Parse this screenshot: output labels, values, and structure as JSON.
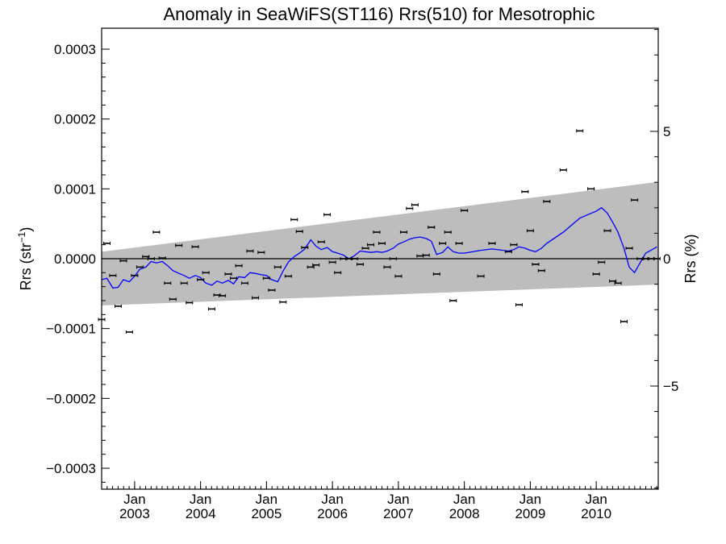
{
  "chart_data": {
    "type": "scatter",
    "title": "Anomaly in SeaWiFS(ST116) Rrs(510) for Mesotrophic",
    "ylabel_left": "Rrs (str",
    "ylabel_left_sup": "−1",
    "ylabel_left_close": ")",
    "ylabel_right": "Rrs (%)",
    "xlim": [
      2002.5,
      2010.94
    ],
    "ylim": [
      -0.00033,
      0.00033
    ],
    "right_ylim": [
      -9.05,
      9.05
    ],
    "grid": false,
    "y_ticks": [
      {
        "value": 0.0003,
        "label": "0.0003"
      },
      {
        "value": 0.0002,
        "label": "0.0002"
      },
      {
        "value": 0.0001,
        "label": "0.0001"
      },
      {
        "value": 0.0,
        "label": "0.0000"
      },
      {
        "value": -0.0001,
        "label": "−0.0001"
      },
      {
        "value": -0.0002,
        "label": "−0.0002"
      },
      {
        "value": -0.0003,
        "label": "−0.0003"
      }
    ],
    "right_ticks": [
      {
        "value": 5,
        "label": "5"
      },
      {
        "value": 0,
        "label": "0"
      },
      {
        "value": -5,
        "label": "−5"
      }
    ],
    "x_ticks": [
      {
        "value": 2003.0,
        "month": "Jan",
        "year": "2003"
      },
      {
        "value": 2004.0,
        "month": "Jan",
        "year": "2004"
      },
      {
        "value": 2005.0,
        "month": "Jan",
        "year": "2005"
      },
      {
        "value": 2006.0,
        "month": "Jan",
        "year": "2006"
      },
      {
        "value": 2007.0,
        "month": "Jan",
        "year": "2007"
      },
      {
        "value": 2008.0,
        "month": "Jan",
        "year": "2008"
      },
      {
        "value": 2009.0,
        "month": "Jan",
        "year": "2009"
      },
      {
        "value": 2010.0,
        "month": "Jan",
        "year": "2010"
      }
    ],
    "band": {
      "color": "#bdbdbd",
      "upper": [
        [
          2002.5,
          1e-05
        ],
        [
          2010.94,
          0.00011
        ]
      ],
      "lower": [
        [
          2002.5,
          -6.7e-05
        ],
        [
          2010.94,
          -3.7e-05
        ]
      ]
    },
    "zero_line": 0.0,
    "series": [
      {
        "kind": "points_with_errorbars",
        "color": "#000000",
        "x": [
          2002.5,
          2002.58,
          2002.67,
          2002.75,
          2002.83,
          2002.92,
          2003.0,
          2003.08,
          2003.17,
          2003.25,
          2003.33,
          2003.42,
          2003.5,
          2003.58,
          2003.67,
          2003.75,
          2003.83,
          2003.92,
          2004.0,
          2004.08,
          2004.17,
          2004.25,
          2004.33,
          2004.42,
          2004.5,
          2004.58,
          2004.67,
          2004.75,
          2004.83,
          2004.92,
          2005.0,
          2005.08,
          2005.17,
          2005.25,
          2005.33,
          2005.42,
          2005.5,
          2005.58,
          2005.67,
          2005.75,
          2005.83,
          2005.92,
          2006.0,
          2006.08,
          2006.17,
          2006.25,
          2006.33,
          2006.42,
          2006.5,
          2006.58,
          2006.67,
          2006.75,
          2006.83,
          2006.92,
          2007.0,
          2007.08,
          2007.17,
          2007.25,
          2007.33,
          2007.42,
          2007.5,
          2007.58,
          2007.67,
          2007.75,
          2007.83,
          2007.92,
          2008.0,
          2008.25,
          2008.42,
          2008.67,
          2008.75,
          2008.83,
          2008.92,
          2009.0,
          2009.08,
          2009.17,
          2009.25,
          2009.5,
          2009.75,
          2009.92,
          2010.0,
          2010.08,
          2010.17,
          2010.25,
          2010.33,
          2010.42,
          2010.5,
          2010.58,
          2010.67,
          2010.75,
          2010.83,
          2010.92
        ],
        "y": [
          -8.7e-05,
          2.2e-05,
          -2.4e-05,
          -6.8e-05,
          -3e-06,
          -0.000105,
          -2.4e-05,
          -1.2e-05,
          3e-06,
          0.0,
          3.8e-05,
          1e-06,
          -3.5e-05,
          -5.8e-05,
          1.9e-05,
          -3.5e-05,
          -6.3e-05,
          1.7e-05,
          -3e-05,
          -2e-05,
          -7.2e-05,
          -5.2e-05,
          -5.3e-05,
          -2.2e-05,
          -2.8e-05,
          -1e-05,
          -3.5e-05,
          1.1e-05,
          -5.6e-05,
          9e-06,
          -2.8e-05,
          -4.5e-05,
          -1.2e-05,
          -6.2e-05,
          -2.5e-05,
          5.6e-05,
          3.9e-05,
          1.6e-05,
          -1.2e-05,
          -9e-06,
          2.4e-05,
          6.3e-05,
          -5e-06,
          -2e-05,
          0.0,
          0.0,
          0.0,
          -8e-06,
          1.5e-05,
          2e-05,
          3.8e-05,
          2.2e-05,
          -1.2e-05,
          0.0,
          -2.5e-05,
          3.8e-05,
          7.2e-05,
          7.7e-05,
          4e-06,
          5e-06,
          4.5e-05,
          -2.2e-05,
          2.2e-05,
          3.8e-05,
          -6e-05,
          2.2e-05,
          6.9e-05,
          -2.5e-05,
          2.2e-05,
          1e-05,
          2e-05,
          -6.6e-05,
          9.6e-05,
          4e-05,
          -8e-06,
          -1.7e-05,
          8.2e-05,
          0.000127,
          0.000183,
          0.0001,
          -2.2e-05,
          -5e-06,
          4e-05,
          -3.2e-05,
          -3.5e-05,
          -9e-05,
          1.5e-05,
          8.4e-05,
          0.0,
          0.0,
          0.0,
          0.0
        ]
      },
      {
        "kind": "line",
        "color": "#0000ff",
        "x": [
          2002.5,
          2002.58,
          2002.67,
          2002.75,
          2002.83,
          2002.92,
          2003.0,
          2003.08,
          2003.17,
          2003.25,
          2003.33,
          2003.42,
          2003.5,
          2003.58,
          2003.67,
          2003.75,
          2003.83,
          2003.92,
          2004.0,
          2004.08,
          2004.17,
          2004.25,
          2004.33,
          2004.42,
          2004.5,
          2004.58,
          2004.67,
          2004.75,
          2004.83,
          2004.92,
          2005.0,
          2005.08,
          2005.17,
          2005.25,
          2005.33,
          2005.42,
          2005.5,
          2005.58,
          2005.67,
          2005.75,
          2005.83,
          2005.92,
          2006.0,
          2006.08,
          2006.17,
          2006.25,
          2006.33,
          2006.42,
          2006.5,
          2006.58,
          2006.67,
          2006.75,
          2006.83,
          2006.92,
          2007.0,
          2007.08,
          2007.17,
          2007.25,
          2007.33,
          2007.42,
          2007.5,
          2007.58,
          2007.67,
          2007.75,
          2007.83,
          2007.92,
          2008.0,
          2008.25,
          2008.42,
          2008.67,
          2008.75,
          2008.83,
          2008.92,
          2009.0,
          2009.08,
          2009.17,
          2009.25,
          2009.5,
          2009.75,
          2009.92,
          2010.0,
          2010.08,
          2010.17,
          2010.25,
          2010.33,
          2010.42,
          2010.5,
          2010.58,
          2010.67,
          2010.75,
          2010.83,
          2010.92
        ],
        "y": [
          -3e-05,
          -2.8e-05,
          -4.2e-05,
          -4.1e-05,
          -3e-05,
          -3.3e-05,
          -2.5e-05,
          -1.5e-05,
          -1.2e-05,
          -4e-06,
          -6e-06,
          -4e-06,
          -1e-05,
          -1.7e-05,
          -2.1e-05,
          -2.4e-05,
          -2.8e-05,
          -2.4e-05,
          -2.7e-05,
          -3.5e-05,
          -3.8e-05,
          -3.2e-05,
          -3.5e-05,
          -3.1e-05,
          -3.6e-05,
          -2.6e-05,
          -2.7e-05,
          -2e-05,
          -2.1e-05,
          -2.3e-05,
          -2.4e-05,
          -3e-05,
          -3.3e-05,
          -1.8e-05,
          -5e-06,
          3e-06,
          8e-06,
          1.4e-05,
          2.7e-05,
          1.8e-05,
          1.3e-05,
          1.6e-05,
          1e-05,
          8e-06,
          5e-06,
          0.0,
          4e-06,
          1.1e-05,
          1e-05,
          9e-06,
          1e-05,
          9e-06,
          1.1e-05,
          1.5e-05,
          2.1e-05,
          2.4e-05,
          2.8e-05,
          3e-05,
          3.1e-05,
          2.9e-05,
          2.5e-05,
          6e-06,
          9e-06,
          1.7e-05,
          1e-05,
          8e-06,
          8e-06,
          1.2e-05,
          1.4e-05,
          1.1e-05,
          1.3e-05,
          1.7e-05,
          1.5e-05,
          1.2e-05,
          1e-05,
          1.5e-05,
          2.2e-05,
          3.8e-05,
          5.8e-05,
          6.5e-05,
          6.8e-05,
          7.3e-05,
          6.5e-05,
          5.2e-05,
          3.8e-05,
          1.5e-05,
          -1.2e-05,
          -2e-05,
          -5e-06,
          8e-06,
          1.2e-05,
          1.7e-05
        ]
      }
    ]
  }
}
